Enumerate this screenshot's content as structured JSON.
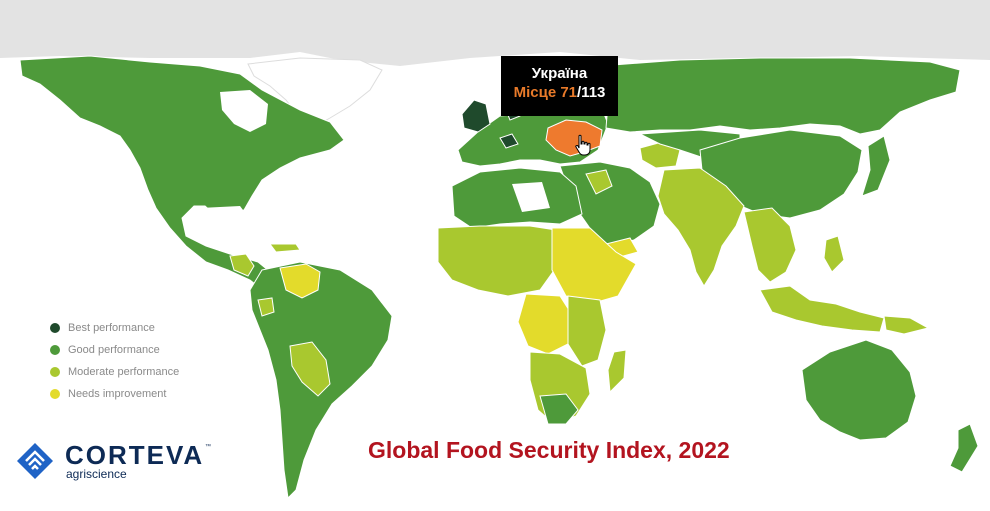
{
  "colors": {
    "best": "#1f4a2c",
    "good": "#4e9a3a",
    "moderate": "#a9c82f",
    "needs": "#e3db2b",
    "highlight": "#ee7a2e",
    "no_data": "#ffffff",
    "ice": "#e3e3e3",
    "title": "#b3141f",
    "brand": "#0d2a55"
  },
  "legend": [
    {
      "label": "Best performance",
      "color": "#1f4a2c"
    },
    {
      "label": "Good performance",
      "color": "#4e9a3a"
    },
    {
      "label": "Moderate performance",
      "color": "#a9c82f"
    },
    {
      "label": "Needs improvement",
      "color": "#e3db2b"
    }
  ],
  "tooltip": {
    "country": "Україна",
    "rank_label": "Місце 71",
    "rank_total": "/113"
  },
  "selected_country": {
    "name": "Україна",
    "rank": 71,
    "of": 113
  },
  "title": "Global Food Security Index, 2022",
  "brand": {
    "name": "CORTEVA",
    "trademark": "™",
    "sub": "agriscience",
    "icon": "corteva-logo-icon"
  },
  "icons": {
    "cursor": "hand-pointer-icon"
  }
}
